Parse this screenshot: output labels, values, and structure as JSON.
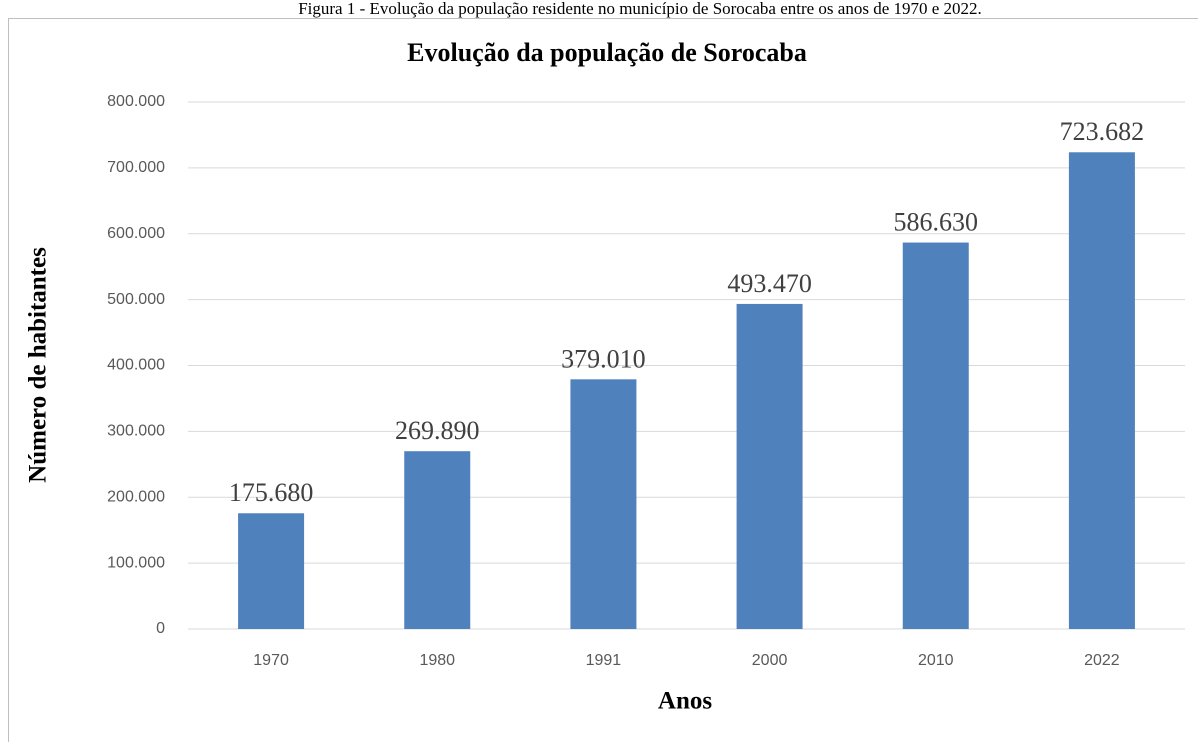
{
  "caption": "Figura 1 - Evolução da população residente no município de Sorocaba entre os anos de 1970 e 2022.",
  "chart_data": {
    "type": "bar",
    "title": "Evolução da população de Sorocaba",
    "x_label": "Anos",
    "y_label": "Número de habitantes",
    "categories": [
      "1970",
      "1980",
      "1991",
      "2000",
      "2010",
      "2022"
    ],
    "values": [
      175680,
      269890,
      379010,
      493470,
      586630,
      723682
    ],
    "value_labels": [
      "175.680",
      "269.890",
      "379.010",
      "493.470",
      "586.630",
      "723.682"
    ],
    "color": "#4f81bd",
    "ylim": [
      0,
      800000
    ],
    "yticks": [
      0,
      {
        "value": 100000,
        "label": "100.000"
      },
      {
        "value": 200000,
        "label": "200.000"
      },
      {
        "value": 300000,
        "label": "300.000"
      },
      {
        "value": 400000,
        "label": "400.000"
      },
      {
        "value": 500000,
        "label": "500.000"
      },
      {
        "value": 600000,
        "label": "600.000"
      },
      {
        "value": 700000,
        "label": "700.000"
      },
      {
        "value": 800000,
        "label": "800.000"
      }
    ],
    "grid": true
  }
}
